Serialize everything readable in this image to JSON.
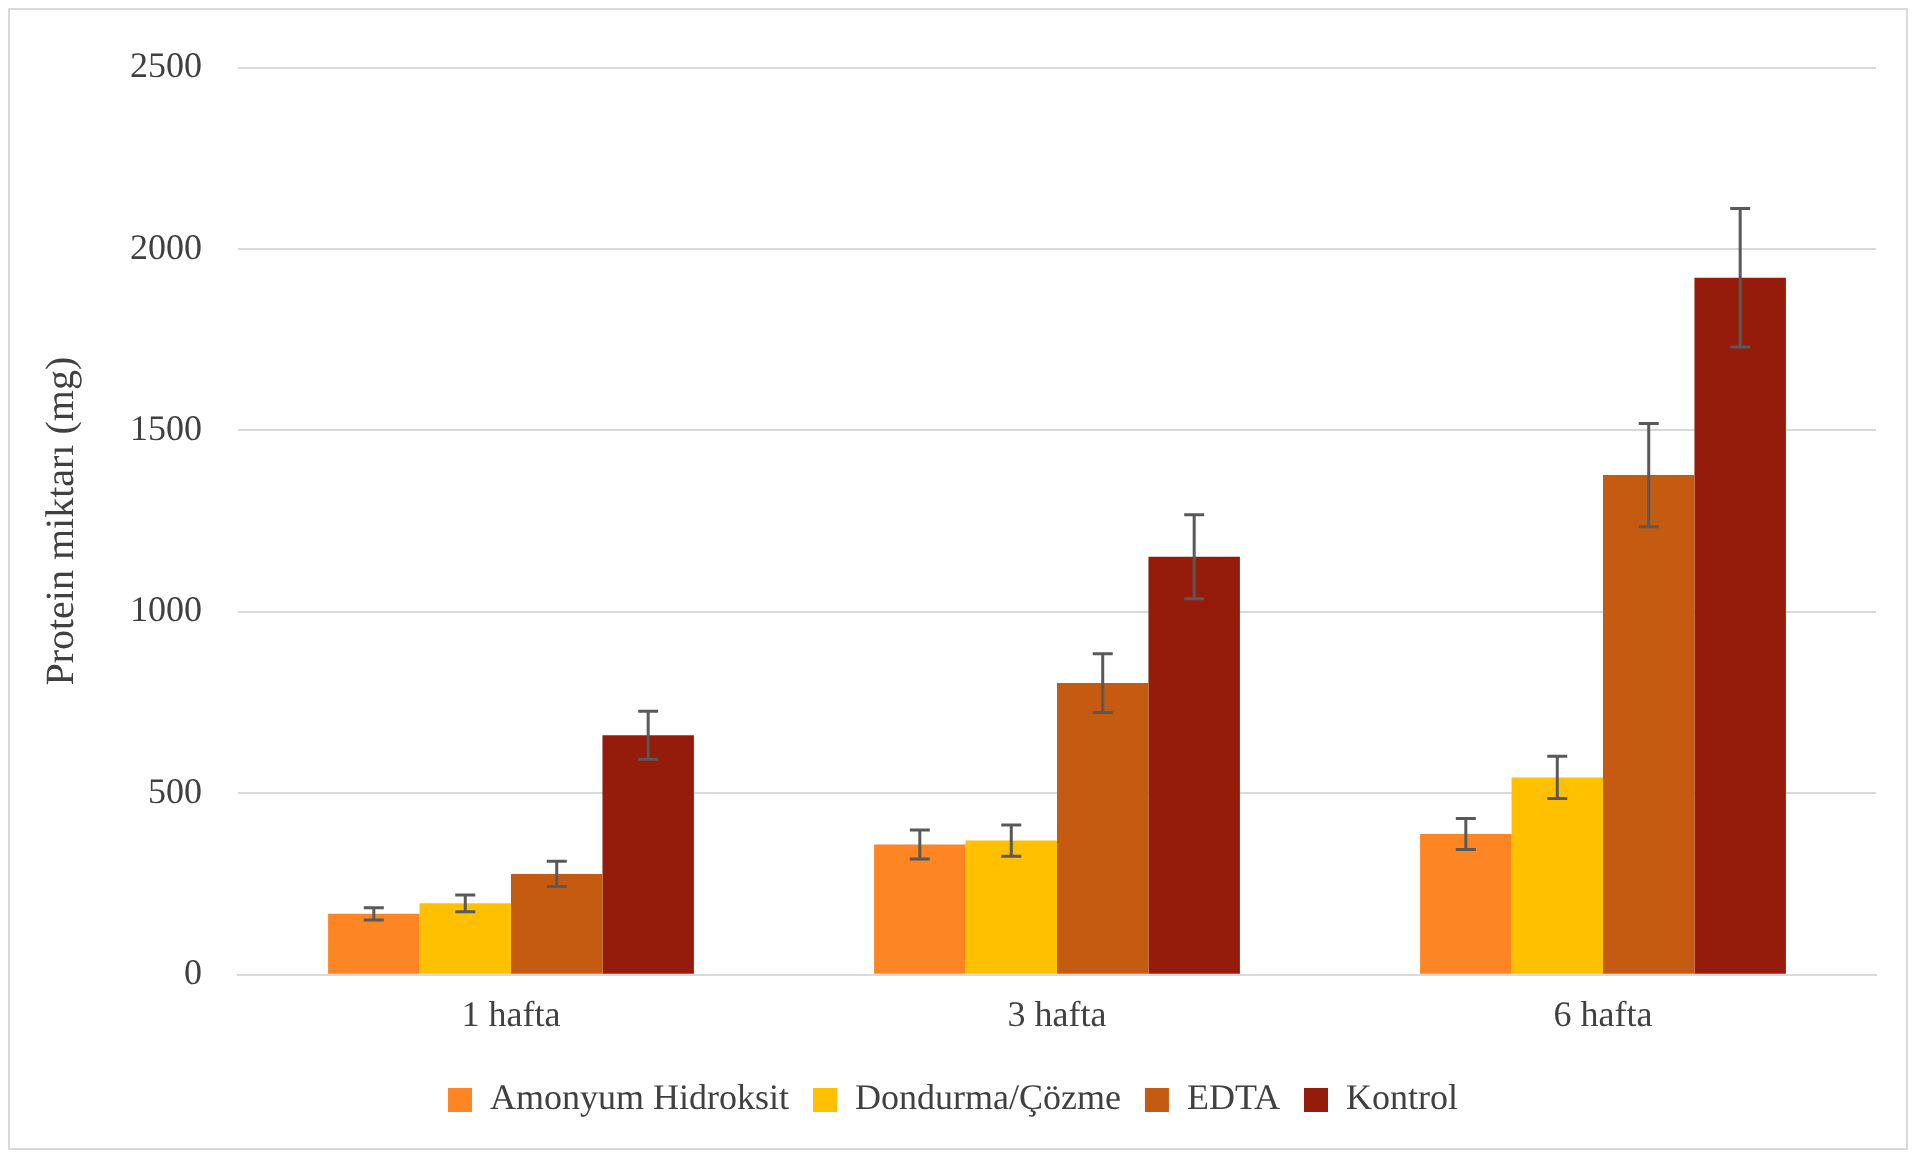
{
  "chart_data": {
    "type": "bar",
    "ylabel": "Protein miktarı (mg)",
    "categories": [
      "1 hafta",
      "3 hafta",
      "6 hafta"
    ],
    "series": [
      {
        "name": "Amonyum Hidroksit",
        "color": "#fd8523",
        "values": [
          168,
          359,
          388
        ],
        "errors": [
          17,
          40,
          43
        ]
      },
      {
        "name": "Dondurma/Çözme",
        "color": "#ffc000",
        "values": [
          197,
          370,
          544
        ],
        "errors": [
          23,
          43,
          58
        ]
      },
      {
        "name": "EDTA",
        "color": "#c55a11",
        "values": [
          278,
          804,
          1377
        ],
        "errors": [
          35,
          81,
          142
        ]
      },
      {
        "name": "Kontrol",
        "color": "#951b0a",
        "values": [
          660,
          1152,
          1921
        ],
        "errors": [
          66,
          116,
          191
        ]
      }
    ],
    "ylim": [
      0,
      2500
    ],
    "yticks": [
      0,
      500,
      1000,
      1500,
      2000,
      2500
    ],
    "grid": "y",
    "legend": "bottom"
  }
}
